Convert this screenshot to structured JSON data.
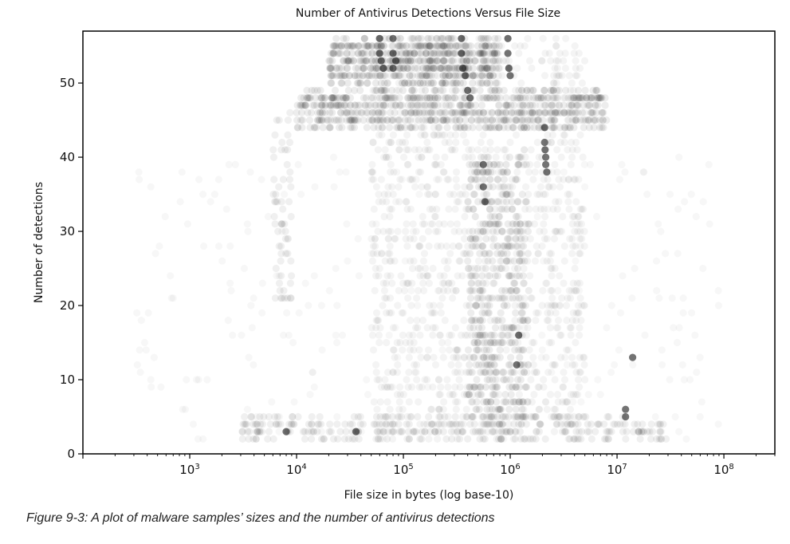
{
  "chart_data": {
    "type": "scatter",
    "title": "Number of Antivirus Detections Versus File Size",
    "xlabel": "File size in bytes (log base-10)",
    "ylabel": "Number of detections",
    "x_scale": "log10",
    "xlim": [
      100,
      300000000
    ],
    "ylim": [
      0,
      57
    ],
    "x_ticks": [
      {
        "value": 1000,
        "mantissa": "10",
        "exp": "3"
      },
      {
        "value": 10000,
        "mantissa": "10",
        "exp": "4"
      },
      {
        "value": 100000,
        "mantissa": "10",
        "exp": "5"
      },
      {
        "value": 1000000,
        "mantissa": "10",
        "exp": "6"
      },
      {
        "value": 10000000,
        "mantissa": "10",
        "exp": "7"
      },
      {
        "value": 100000000,
        "mantissa": "10",
        "exp": "8"
      }
    ],
    "y_ticks": [
      0,
      10,
      20,
      30,
      40,
      50
    ],
    "grid": false,
    "legend": "none",
    "point_color": "#000000",
    "point_opacity": 0.07,
    "highlighted_points": [
      {
        "x": 60000,
        "y": 56
      },
      {
        "x": 60000,
        "y": 54
      },
      {
        "x": 62000,
        "y": 53
      },
      {
        "x": 65000,
        "y": 52
      },
      {
        "x": 80000,
        "y": 56
      },
      {
        "x": 80000,
        "y": 54
      },
      {
        "x": 80000,
        "y": 52
      },
      {
        "x": 85000,
        "y": 53
      },
      {
        "x": 350000,
        "y": 56
      },
      {
        "x": 350000,
        "y": 54
      },
      {
        "x": 360000,
        "y": 52
      },
      {
        "x": 380000,
        "y": 51
      },
      {
        "x": 400000,
        "y": 49
      },
      {
        "x": 420000,
        "y": 48
      },
      {
        "x": 950000,
        "y": 56
      },
      {
        "x": 950000,
        "y": 54
      },
      {
        "x": 970000,
        "y": 52
      },
      {
        "x": 1000000,
        "y": 51
      },
      {
        "x": 2100000,
        "y": 44
      },
      {
        "x": 2100000,
        "y": 42
      },
      {
        "x": 2120000,
        "y": 41
      },
      {
        "x": 2150000,
        "y": 40
      },
      {
        "x": 2150000,
        "y": 39
      },
      {
        "x": 2200000,
        "y": 38
      },
      {
        "x": 560000,
        "y": 39
      },
      {
        "x": 560000,
        "y": 36
      },
      {
        "x": 580000,
        "y": 34
      },
      {
        "x": 12000000,
        "y": 6
      },
      {
        "x": 12000000,
        "y": 5
      },
      {
        "x": 14000000,
        "y": 13
      },
      {
        "x": 36000,
        "y": 3
      },
      {
        "x": 8000,
        "y": 3
      },
      {
        "x": 1200000,
        "y": 16
      },
      {
        "x": 1150000,
        "y": 12
      }
    ],
    "bands": [
      {
        "x_min": 20000,
        "x_max": 800000,
        "y_min": 50,
        "y_max": 56,
        "count": 520,
        "opacity": 0.08
      },
      {
        "x_min": 10000,
        "x_max": 8000000,
        "y_min": 44,
        "y_max": 49,
        "count": 650,
        "opacity": 0.07
      },
      {
        "x_min": 50000,
        "x_max": 5000000,
        "y_min": 2,
        "y_max": 56,
        "count": 1300,
        "opacity": 0.045
      },
      {
        "x_min": 3000,
        "x_max": 30000000,
        "y_min": 2,
        "y_max": 5,
        "count": 320,
        "opacity": 0.06
      },
      {
        "x_min": 300,
        "x_max": 100000000,
        "y_min": 2,
        "y_max": 40,
        "count": 260,
        "opacity": 0.03
      },
      {
        "x_min": 400000,
        "x_max": 1500000,
        "y_min": 4,
        "y_max": 40,
        "count": 420,
        "opacity": 0.07
      },
      {
        "x_min": 6000,
        "x_max": 9000,
        "y_min": 20,
        "y_max": 46,
        "count": 60,
        "opacity": 0.06
      }
    ]
  },
  "caption": "Figure 9-3: A plot of malware samples’ sizes and the number of antivirus detections"
}
